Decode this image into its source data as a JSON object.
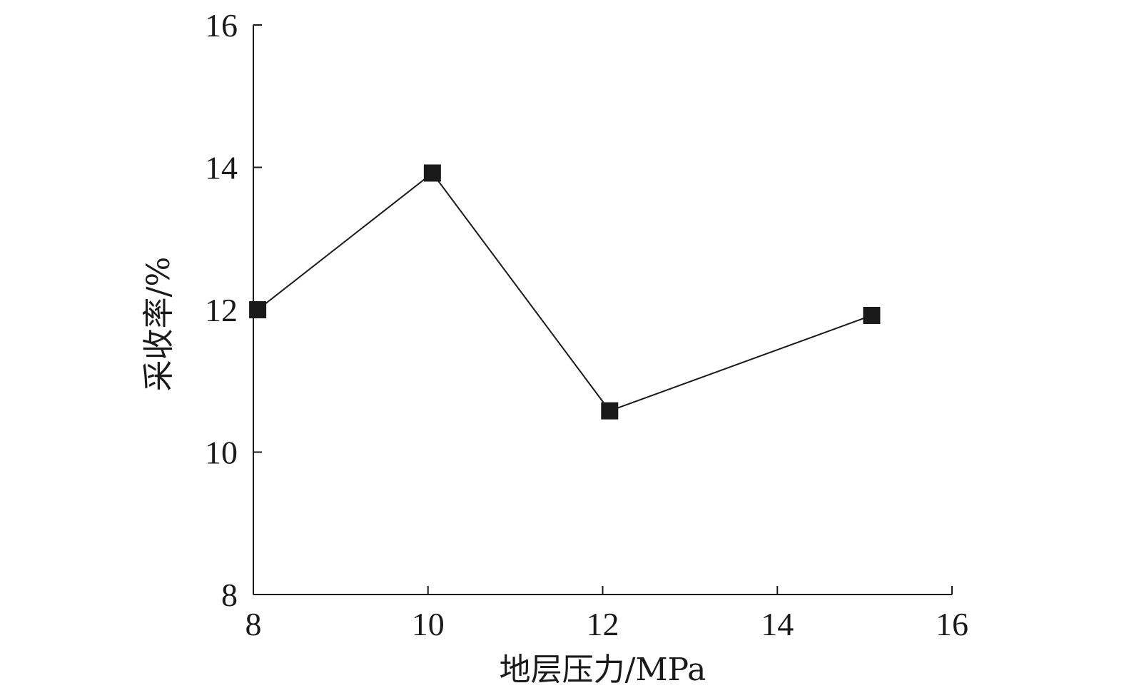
{
  "chart_data": {
    "type": "line",
    "xlabel": "地层压力/MPa",
    "ylabel": "采收率/%",
    "xlim": [
      8,
      16
    ],
    "ylim": [
      8,
      16
    ],
    "xticks": [
      8,
      10,
      12,
      14,
      16
    ],
    "yticks": [
      8,
      10,
      12,
      14,
      16
    ],
    "grid": false,
    "series": [
      {
        "x": [
          8.05,
          10.05,
          12.08,
          15.08
        ],
        "y": [
          12.0,
          13.92,
          10.58,
          11.92
        ],
        "marker": "square",
        "color": "#1a1a1a"
      }
    ]
  }
}
